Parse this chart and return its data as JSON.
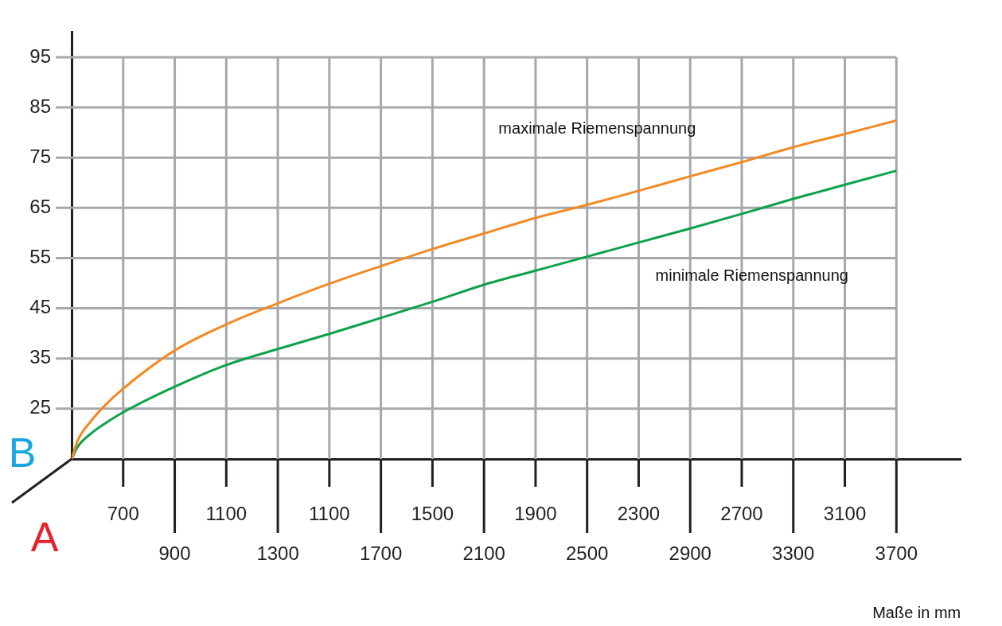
{
  "chart_data": {
    "type": "line",
    "xlabel": "Maße in mm",
    "xlim": [
      500,
      3950
    ],
    "ylim": [
      15,
      100
    ],
    "xticks": [
      {
        "value": 700,
        "label": null
      },
      900,
      {
        "value": 1100,
        "label": null
      },
      1300,
      {
        "value": 1500,
        "label": null
      },
      1700,
      {
        "value": 1900,
        "label": null
      },
      2100,
      {
        "value": 2300,
        "label": null
      },
      2500,
      {
        "value": 2700,
        "label": null
      },
      2900,
      {
        "value": 3100,
        "label": null
      },
      3300,
      {
        "value": 3500,
        "label": null
      },
      3700
    ],
    "yticks": [
      25,
      35,
      45,
      55,
      65,
      75,
      85,
      95
    ],
    "grid": true,
    "legend": false,
    "marker": "none",
    "line_style": "solid",
    "series": [
      {
        "color": "#f28a25",
        "x": [
          500,
          523,
          576,
          628,
          700,
          900,
          1100,
          1300,
          1500,
          1700,
          1900,
          2100,
          2300,
          2500,
          2700,
          2900,
          3100,
          3300,
          3500,
          3700
        ],
        "values": [
          15,
          18.6,
          22.6,
          25.6,
          29,
          36.6,
          41.8,
          46,
          49.9,
          53.4,
          56.8,
          59.9,
          63,
          65.6,
          68.4,
          71.3,
          74.1,
          77.1,
          79.7,
          82.4
        ]
      },
      {
        "color": "#0fa14a",
        "x": [
          500,
          523,
          576,
          628,
          700,
          900,
          1100,
          1300,
          1500,
          1700,
          1900,
          2100,
          2300,
          2500,
          2700,
          2900,
          3100,
          3300,
          3500,
          3700
        ],
        "values": [
          15,
          17.4,
          20.1,
          22,
          24.3,
          29.4,
          33.7,
          36.9,
          39.9,
          43.1,
          46.3,
          49.7,
          52.5,
          55.3,
          58.1,
          60.9,
          63.8,
          66.8,
          69.6,
          72.4
        ]
      }
    ],
    "annotations": [
      "maximale Riemenspannung",
      "minimale Riemenspannung",
      "B",
      "A",
      "700",
      "1100",
      "1100",
      "1500",
      "1900",
      "2300",
      "2700",
      "3100"
    ]
  }
}
